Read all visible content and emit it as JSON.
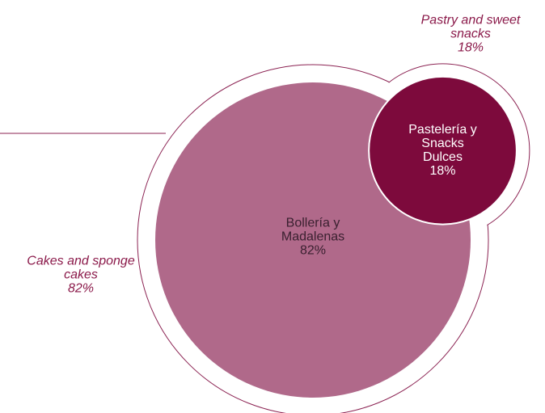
{
  "chart_data": {
    "type": "bubble",
    "categories": [
      "Bollería y Madalenas",
      "Pastelería y Snacks Dulces"
    ],
    "annotations": [
      "Cakes and sponge cakes",
      "Pastry and sweet snacks"
    ],
    "values": [
      82,
      18
    ],
    "value_labels": [
      "82%",
      "18%"
    ],
    "colors": [
      "#b0698a",
      "#7d0a3c"
    ]
  }
}
